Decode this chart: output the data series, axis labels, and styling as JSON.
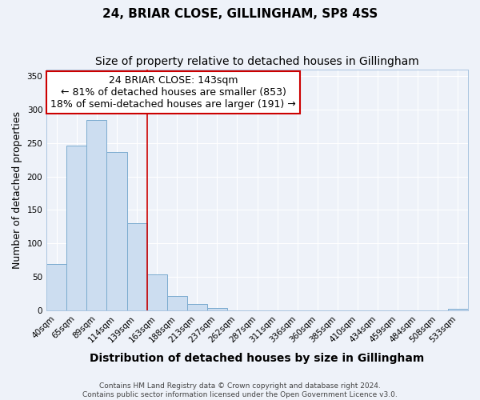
{
  "title": "24, BRIAR CLOSE, GILLINGHAM, SP8 4SS",
  "subtitle": "Size of property relative to detached houses in Gillingham",
  "xlabel": "Distribution of detached houses by size in Gillingham",
  "ylabel": "Number of detached properties",
  "bin_labels": [
    "40sqm",
    "65sqm",
    "89sqm",
    "114sqm",
    "139sqm",
    "163sqm",
    "188sqm",
    "213sqm",
    "237sqm",
    "262sqm",
    "287sqm",
    "311sqm",
    "336sqm",
    "360sqm",
    "385sqm",
    "410sqm",
    "434sqm",
    "459sqm",
    "484sqm",
    "508sqm",
    "533sqm"
  ],
  "bar_values": [
    69,
    246,
    284,
    237,
    130,
    54,
    22,
    10,
    4,
    0,
    0,
    0,
    0,
    0,
    0,
    0,
    0,
    0,
    0,
    0,
    2
  ],
  "bar_color": "#ccddf0",
  "bar_edge_color": "#7aabcf",
  "vline_index": 4,
  "vline_color": "#cc0000",
  "annotation_line1": "24 BRIAR CLOSE: 143sqm",
  "annotation_line2": "← 81% of detached houses are smaller (853)",
  "annotation_line3": "18% of semi-detached houses are larger (191) →",
  "annotation_box_color": "#ffffff",
  "annotation_border_color": "#cc0000",
  "ylim": [
    0,
    360
  ],
  "yticks": [
    0,
    50,
    100,
    150,
    200,
    250,
    300,
    350
  ],
  "footer_line1": "Contains HM Land Registry data © Crown copyright and database right 2024.",
  "footer_line2": "Contains public sector information licensed under the Open Government Licence v3.0.",
  "bg_color": "#eef2f9",
  "plot_bg_color": "#eef2f9",
  "grid_color": "#ffffff",
  "title_fontsize": 11,
  "subtitle_fontsize": 10,
  "xlabel_fontsize": 10,
  "ylabel_fontsize": 9,
  "tick_fontsize": 7.5,
  "annotation_fontsize": 9,
  "footer_fontsize": 6.5
}
